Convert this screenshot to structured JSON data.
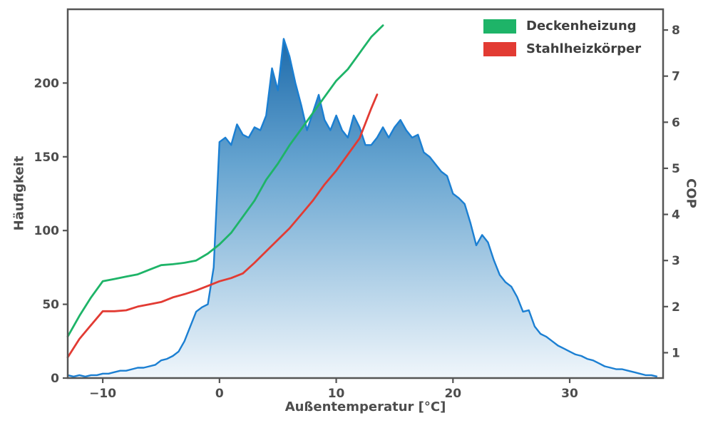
{
  "chart_data": {
    "type": "area",
    "title": "",
    "xlabel": "Außentemperatur [°C]",
    "ylabel_left": "Häufigkeit",
    "ylabel_right": "COP",
    "xlim": [
      -13,
      38
    ],
    "ylim_left": [
      0,
      250
    ],
    "ylim_right": [
      0.45,
      8.45
    ],
    "x_ticks": [
      -10,
      0,
      10,
      20,
      30
    ],
    "y_ticks_left": [
      0,
      50,
      100,
      150,
      200
    ],
    "y_ticks_right": [
      1,
      2,
      3,
      4,
      5,
      6,
      7,
      8
    ],
    "grid": false,
    "legend_position": "upper right",
    "axis_color": "#555555",
    "histogram": {
      "name": "Häufigkeit",
      "axis": "left",
      "style": "area",
      "line_color": "#1b7fd2",
      "fill_gradient": [
        "#0c5da2",
        "#66a4d0",
        "#f0f6fb"
      ],
      "x": [
        -13,
        -12.5,
        -12,
        -11.5,
        -11,
        -10.5,
        -10,
        -9.5,
        -9,
        -8.5,
        -8,
        -7.5,
        -7,
        -6.5,
        -6,
        -5.5,
        -5,
        -4.5,
        -4,
        -3.5,
        -3,
        -2.5,
        -2,
        -1.5,
        -1,
        -0.5,
        0,
        0.5,
        1,
        1.5,
        2,
        2.5,
        3,
        3.5,
        4,
        4.5,
        5,
        5.5,
        6,
        6.5,
        7,
        7.5,
        8,
        8.5,
        9,
        9.5,
        10,
        10.5,
        11,
        11.5,
        12,
        12.5,
        13,
        13.5,
        14,
        14.5,
        15,
        15.5,
        16,
        16.5,
        17,
        17.5,
        18,
        18.5,
        19,
        19.5,
        20,
        20.5,
        21,
        21.5,
        22,
        22.5,
        23,
        23.5,
        24,
        24.5,
        25,
        25.5,
        26,
        26.5,
        27,
        27.5,
        28,
        28.5,
        29,
        29.5,
        30,
        30.5,
        31,
        31.5,
        32,
        32.5,
        33,
        33.5,
        34,
        34.5,
        35,
        35.5,
        36,
        36.5,
        37,
        37.5
      ],
      "y": [
        2,
        1,
        2,
        1,
        2,
        2,
        3,
        3,
        4,
        5,
        5,
        6,
        7,
        7,
        8,
        9,
        12,
        13,
        15,
        18,
        25,
        35,
        45,
        48,
        50,
        75,
        160,
        163,
        158,
        172,
        165,
        163,
        170,
        168,
        178,
        210,
        195,
        230,
        218,
        200,
        185,
        168,
        180,
        192,
        175,
        168,
        178,
        168,
        163,
        178,
        170,
        158,
        158,
        163,
        170,
        163,
        170,
        175,
        168,
        163,
        165,
        153,
        150,
        145,
        140,
        137,
        125,
        122,
        118,
        105,
        90,
        97,
        92,
        80,
        70,
        65,
        62,
        55,
        45,
        46,
        35,
        30,
        28,
        25,
        22,
        20,
        18,
        16,
        15,
        13,
        12,
        10,
        8,
        7,
        6,
        6,
        5,
        4,
        3,
        2,
        2,
        1
      ]
    },
    "series": [
      {
        "name": "Deckenheizung",
        "axis": "right",
        "style": "line",
        "color": "#1eb468",
        "x": [
          -13,
          -12,
          -11,
          -10,
          -9,
          -8,
          -7,
          -6,
          -5,
          -4,
          -3,
          -2,
          -1,
          0,
          1,
          2,
          3,
          4,
          5,
          6,
          7,
          8,
          9,
          10,
          11,
          12,
          13,
          14
        ],
        "y": [
          1.35,
          1.8,
          2.2,
          2.55,
          2.6,
          2.65,
          2.7,
          2.8,
          2.9,
          2.92,
          2.95,
          3.0,
          3.15,
          3.35,
          3.6,
          3.95,
          4.3,
          4.75,
          5.1,
          5.5,
          5.85,
          6.2,
          6.55,
          6.9,
          7.15,
          7.5,
          7.85,
          8.1
        ]
      },
      {
        "name": "Stahlheizkörper",
        "axis": "right",
        "style": "line",
        "color": "#e23b33",
        "x": [
          -13,
          -12,
          -11,
          -10,
          -9,
          -8,
          -7,
          -6,
          -5,
          -4,
          -3,
          -2,
          -1,
          0,
          1,
          2,
          3,
          4,
          5,
          6,
          7,
          8,
          9,
          10,
          11,
          12,
          13,
          13.5
        ],
        "y": [
          0.9,
          1.3,
          1.6,
          1.9,
          1.9,
          1.92,
          2.0,
          2.05,
          2.1,
          2.2,
          2.27,
          2.35,
          2.45,
          2.55,
          2.62,
          2.72,
          2.95,
          3.2,
          3.45,
          3.7,
          4.0,
          4.3,
          4.65,
          4.95,
          5.3,
          5.65,
          6.3,
          6.6
        ]
      }
    ]
  },
  "legend": {
    "items": [
      {
        "label": "Deckenheizung"
      },
      {
        "label": "Stahlheizkörper"
      }
    ]
  }
}
